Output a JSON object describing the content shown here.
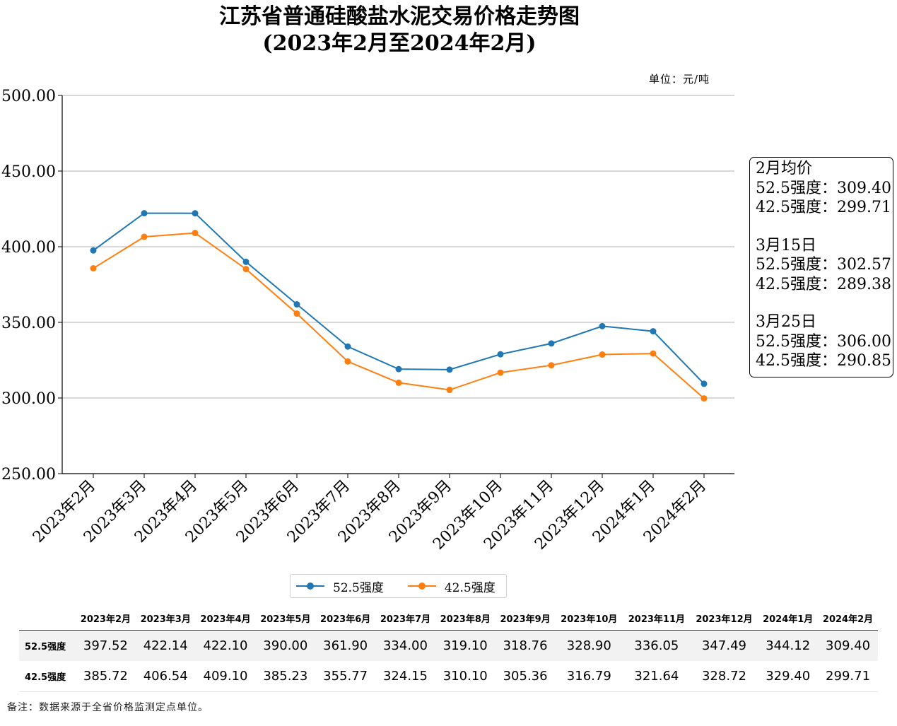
{
  "chart_data": {
    "type": "line",
    "title": "江苏省普通硅酸盐水泥交易价格走势图",
    "subtitle": "(2023年2月至2024年2月)",
    "unit_label": "单位：元/吨",
    "categories": [
      "2023年2月",
      "2023年3月",
      "2023年4月",
      "2023年5月",
      "2023年6月",
      "2023年7月",
      "2023年8月",
      "2023年9月",
      "2023年10月",
      "2023年11月",
      "2023年12月",
      "2024年1月",
      "2024年2月"
    ],
    "series": [
      {
        "name": "52.5强度",
        "color": "#1f77b4",
        "values": [
          397.52,
          422.14,
          422.1,
          390.0,
          361.9,
          334.0,
          319.1,
          318.76,
          328.9,
          336.05,
          347.49,
          344.12,
          309.4
        ]
      },
      {
        "name": "42.5强度",
        "color": "#ff7f0e",
        "values": [
          385.72,
          406.54,
          409.1,
          385.23,
          355.77,
          324.15,
          310.1,
          305.36,
          316.79,
          321.64,
          328.72,
          329.4,
          299.71
        ]
      }
    ],
    "ylim": [
      250,
      500
    ],
    "yticks": [
      "250.00",
      "300.00",
      "350.00",
      "400.00",
      "450.00",
      "500.00"
    ],
    "grid": "horizontal",
    "legend_position": "bottom-center"
  },
  "infobox": [
    {
      "heading": "2月均价",
      "rows": [
        {
          "label": "52.5强度：",
          "value": "309.40"
        },
        {
          "label": "42.5强度：",
          "value": "299.71"
        }
      ]
    },
    {
      "heading": "3月15日",
      "rows": [
        {
          "label": "52.5强度：",
          "value": "302.57"
        },
        {
          "label": "42.5强度：",
          "value": "289.38"
        }
      ]
    },
    {
      "heading": "3月25日",
      "rows": [
        {
          "label": "52.5强度：",
          "value": "306.00"
        },
        {
          "label": "42.5强度：",
          "value": "290.85"
        }
      ]
    }
  ],
  "table": {
    "rows": [
      {
        "label": "52.5强度",
        "values": [
          "397.52",
          "422.14",
          "422.10",
          "390.00",
          "361.90",
          "334.00",
          "319.10",
          "318.76",
          "328.90",
          "336.05",
          "347.49",
          "344.12",
          "309.40"
        ]
      },
      {
        "label": "42.5强度",
        "values": [
          "385.72",
          "406.54",
          "409.10",
          "385.23",
          "355.77",
          "324.15",
          "310.10",
          "305.36",
          "316.79",
          "321.64",
          "328.72",
          "329.40",
          "299.71"
        ]
      }
    ]
  },
  "note": "备注：数据来源于全省价格监测定点单位。"
}
